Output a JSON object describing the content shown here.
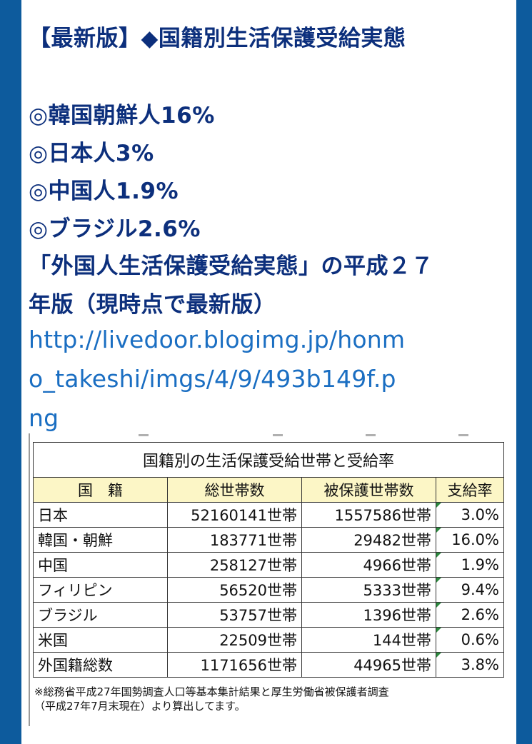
{
  "post": {
    "title": "【最新版】◆国籍別生活保護受給実態",
    "stats": [
      "◎韓国朝鮮人16%",
      "◎日本人3%",
      "◎中国人1.9%",
      "◎ブラジル2.6%"
    ],
    "body_lines": [
      "「外国人生活保護受給実態」の平成２７",
      "年版（現時点で最新版）"
    ],
    "link_lines": [
      "http://livedoor.blogimg.jp/honm",
      "o_takeshi/imgs/4/9/493b149f.p",
      "ng"
    ]
  },
  "table": {
    "caption": "国籍別の生活保護受給世帯と受給率",
    "headers": [
      "国　籍",
      "総世帯数",
      "被保護世帯数",
      "支給率"
    ],
    "rows": [
      {
        "country": "日本",
        "total": "52160141世帯",
        "protected": "1557586世帯",
        "rate": "3.0%"
      },
      {
        "country": "韓国・朝鮮",
        "total": "183771世帯",
        "protected": "29482世帯",
        "rate": "16.0%"
      },
      {
        "country": "中国",
        "total": "258127世帯",
        "protected": "4966世帯",
        "rate": "1.9%"
      },
      {
        "country": "フィリピン",
        "total": "56520世帯",
        "protected": "5333世帯",
        "rate": "9.4%"
      },
      {
        "country": "ブラジル",
        "total": "53757世帯",
        "protected": "1396世帯",
        "rate": "2.6%"
      },
      {
        "country": "米国",
        "total": "22509世帯",
        "protected": "144世帯",
        "rate": "0.6%"
      },
      {
        "country": "外国籍総数",
        "total": "1171656世帯",
        "protected": "44965世帯",
        "rate": "3.8%"
      }
    ],
    "note_lines": [
      "※総務省平成27年国勢調査人口等基本集計結果と厚生労働省被保護者調査",
      "（平成27年7月末現在）より算出してます。"
    ]
  },
  "colors": {
    "frame": "#0d5b9d",
    "heading_text": "#0c2f7c",
    "link_text": "#1a6ec2",
    "table_header_bg": "#fcf6c6"
  }
}
